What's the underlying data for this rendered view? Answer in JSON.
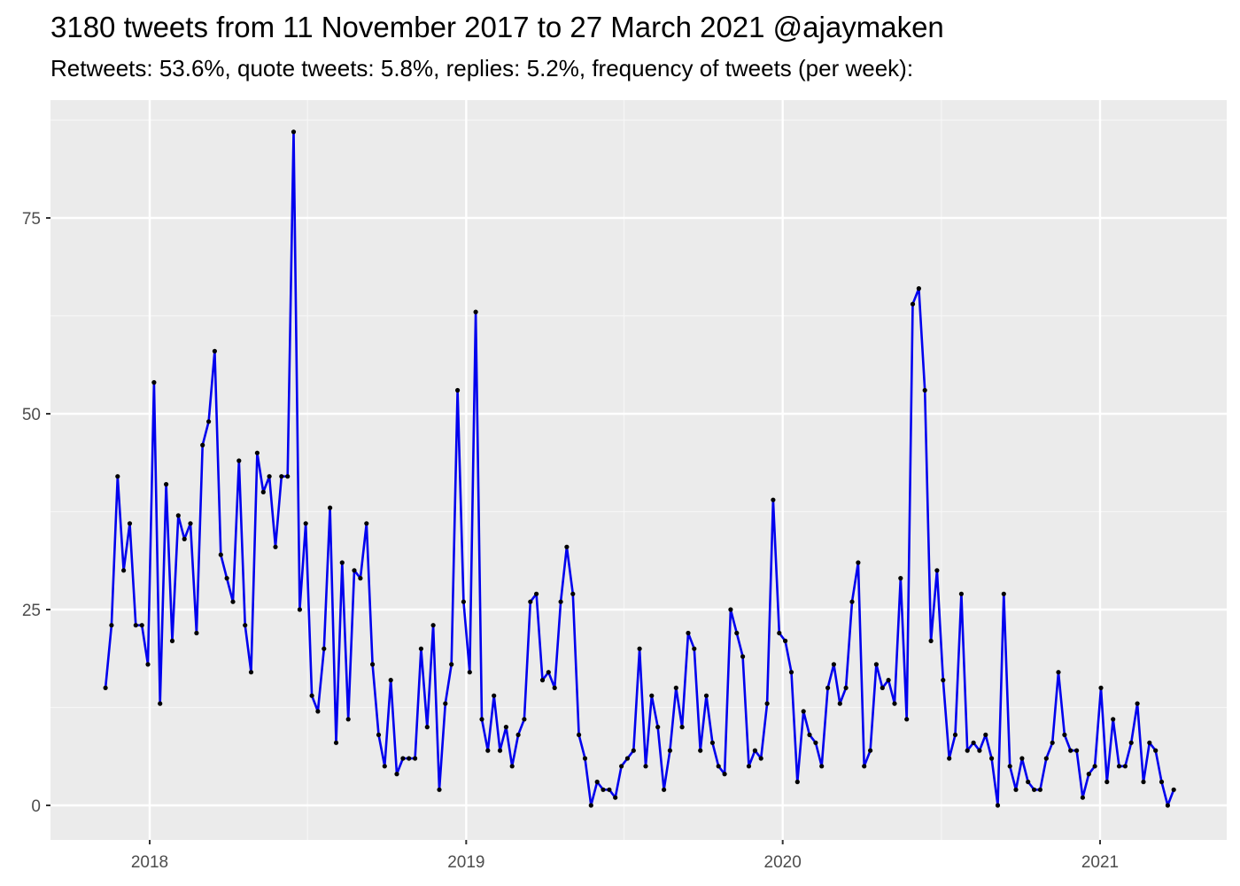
{
  "chart_data": {
    "type": "line",
    "title": "3180 tweets from 11 November 2017 to 27 March 2021 @ajaymaken",
    "subtitle": "Retweets: 53.6%, quote tweets: 5.8%, replies: 5.2%, frequency of tweets (per week):",
    "xlabel": "",
    "ylabel": "",
    "x_ticks": [
      "2018",
      "2019",
      "2020",
      "2021"
    ],
    "y_ticks": [
      0,
      25,
      50,
      75
    ],
    "ylim": [
      -4,
      90
    ],
    "grid": true,
    "line_color": "#0000ee",
    "point_color": "#000000",
    "panel_background": "#ebebeb",
    "x_start": "2017-11-11",
    "x_step_days": 7,
    "values": [
      15,
      23,
      42,
      30,
      36,
      23,
      23,
      18,
      54,
      13,
      41,
      21,
      37,
      34,
      36,
      22,
      46,
      49,
      58,
      32,
      29,
      26,
      44,
      23,
      17,
      45,
      40,
      42,
      33,
      42,
      42,
      86,
      25,
      36,
      14,
      12,
      20,
      38,
      8,
      31,
      11,
      30,
      29,
      36,
      18,
      9,
      5,
      16,
      4,
      6,
      6,
      6,
      20,
      10,
      23,
      2,
      13,
      18,
      53,
      26,
      17,
      63,
      11,
      7,
      14,
      7,
      10,
      5,
      9,
      11,
      26,
      27,
      16,
      17,
      15,
      26,
      33,
      27,
      9,
      6,
      0,
      3,
      2,
      2,
      1,
      5,
      6,
      7,
      20,
      5,
      14,
      10,
      2,
      7,
      15,
      10,
      22,
      20,
      7,
      14,
      8,
      5,
      4,
      25,
      22,
      19,
      5,
      7,
      6,
      13,
      39,
      22,
      21,
      17,
      3,
      12,
      9,
      8,
      5,
      15,
      18,
      13,
      15,
      26,
      31,
      5,
      7,
      18,
      15,
      16,
      13,
      29,
      11,
      64,
      66,
      53,
      21,
      30,
      16,
      6,
      9,
      27,
      7,
      8,
      7,
      9,
      6,
      0,
      27,
      5,
      2,
      6,
      3,
      2,
      2,
      6,
      8,
      17,
      9,
      7,
      7,
      1,
      4,
      5,
      15,
      3,
      11,
      5,
      5,
      8,
      13,
      3,
      8,
      7,
      3,
      0,
      2
    ]
  }
}
